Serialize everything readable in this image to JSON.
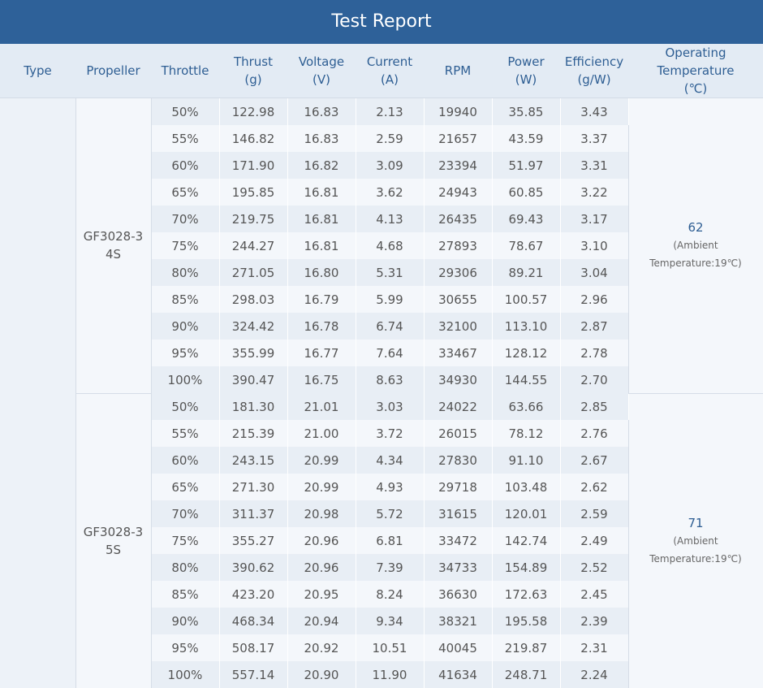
{
  "title": "Test Report",
  "headers": {
    "type": "Type",
    "propeller": "Propeller",
    "throttle": "Throttle",
    "thrust": [
      "Thrust",
      "(g)"
    ],
    "voltage": [
      "Voltage",
      "(V)"
    ],
    "current": [
      "Current",
      "(A)"
    ],
    "rpm": "RPM",
    "power": [
      "Power",
      "(W)"
    ],
    "efficiency": [
      "Efficiency",
      "(g/W)"
    ],
    "temperature": [
      "Operating",
      "Temperature",
      "(℃)"
    ]
  },
  "groups": [
    {
      "propeller": [
        "GF3028-3",
        "4S"
      ],
      "temp_value": "62",
      "temp_note": [
        "(Ambient",
        "Temperature:19℃)"
      ],
      "rows": [
        [
          "50%",
          "122.98",
          "16.83",
          "2.13",
          "19940",
          "35.85",
          "3.43"
        ],
        [
          "55%",
          "146.82",
          "16.83",
          "2.59",
          "21657",
          "43.59",
          "3.37"
        ],
        [
          "60%",
          "171.90",
          "16.82",
          "3.09",
          "23394",
          "51.97",
          "3.31"
        ],
        [
          "65%",
          "195.85",
          "16.81",
          "3.62",
          "24943",
          "60.85",
          "3.22"
        ],
        [
          "70%",
          "219.75",
          "16.81",
          "4.13",
          "26435",
          "69.43",
          "3.17"
        ],
        [
          "75%",
          "244.27",
          "16.81",
          "4.68",
          "27893",
          "78.67",
          "3.10"
        ],
        [
          "80%",
          "271.05",
          "16.80",
          "5.31",
          "29306",
          "89.21",
          "3.04"
        ],
        [
          "85%",
          "298.03",
          "16.79",
          "5.99",
          "30655",
          "100.57",
          "2.96"
        ],
        [
          "90%",
          "324.42",
          "16.78",
          "6.74",
          "32100",
          "113.10",
          "2.87"
        ],
        [
          "95%",
          "355.99",
          "16.77",
          "7.64",
          "33467",
          "128.12",
          "2.78"
        ],
        [
          "100%",
          "390.47",
          "16.75",
          "8.63",
          "34930",
          "144.55",
          "2.70"
        ]
      ]
    },
    {
      "propeller": [
        "GF3028-3",
        "5S"
      ],
      "temp_value": "71",
      "temp_note": [
        "(Ambient",
        "Temperature:19℃)"
      ],
      "rows": [
        [
          "50%",
          "181.30",
          "21.01",
          "3.03",
          "24022",
          "63.66",
          "2.85"
        ],
        [
          "55%",
          "215.39",
          "21.00",
          "3.72",
          "26015",
          "78.12",
          "2.76"
        ],
        [
          "60%",
          "243.15",
          "20.99",
          "4.34",
          "27830",
          "91.10",
          "2.67"
        ],
        [
          "65%",
          "271.30",
          "20.99",
          "4.93",
          "29718",
          "103.48",
          "2.62"
        ],
        [
          "70%",
          "311.37",
          "20.98",
          "5.72",
          "31615",
          "120.01",
          "2.59"
        ],
        [
          "75%",
          "355.27",
          "20.96",
          "6.81",
          "33472",
          "142.74",
          "2.49"
        ],
        [
          "80%",
          "390.62",
          "20.96",
          "7.39",
          "34733",
          "154.89",
          "2.52"
        ],
        [
          "85%",
          "423.20",
          "20.95",
          "8.24",
          "36630",
          "172.63",
          "2.45"
        ],
        [
          "90%",
          "468.34",
          "20.94",
          "9.34",
          "38321",
          "195.58",
          "2.39"
        ],
        [
          "95%",
          "508.17",
          "20.92",
          "10.51",
          "40045",
          "219.87",
          "2.31"
        ],
        [
          "100%",
          "557.14",
          "20.90",
          "11.90",
          "41634",
          "248.71",
          "2.24"
        ]
      ]
    }
  ]
}
